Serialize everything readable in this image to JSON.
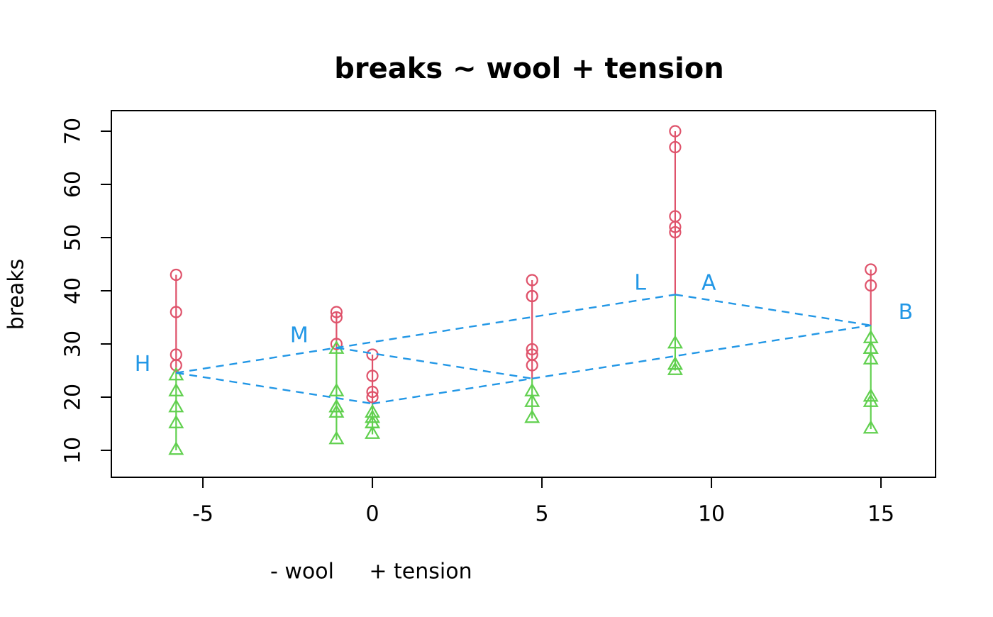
{
  "window": {
    "background": "#ffffff"
  },
  "colors": {
    "above_points": "#DF536B",
    "below_points": "#61D04F",
    "fit_lines": "#2297E6",
    "axis": "#000000"
  },
  "chart_data": {
    "type": "scatter",
    "title": "breaks ~ wool + tension",
    "ylabel": "breaks",
    "xlabel_parts": [
      "- wool",
      "+ tension"
    ],
    "x_ticks": [
      "-5",
      "0",
      "5",
      "10",
      "15"
    ],
    "x_tick_values": [
      -5,
      0,
      5,
      10,
      15
    ],
    "y_ticks": [
      "10",
      "20",
      "30",
      "40",
      "50",
      "60",
      "70"
    ],
    "y_tick_values": [
      10,
      20,
      30,
      40,
      50,
      60,
      70
    ],
    "xlim": [
      -7.7,
      16.61
    ],
    "ylim": [
      4.93,
      73.87
    ],
    "grid": false,
    "marker_meaning": {
      "red_circle": "observation above additive fitted value",
      "green_triangle": "observation below additive fitted value",
      "blue_dashed": "additive fit lines for wool levels and tension links"
    },
    "groups": [
      {
        "wool": "A",
        "tension": "H",
        "x": -5.79,
        "fitted": 24.56,
        "above": [
          43,
          36,
          28,
          26
        ],
        "below": [
          24,
          21,
          18,
          15,
          10
        ]
      },
      {
        "wool": "A",
        "tension": "M",
        "x": -1.06,
        "fitted": 29.28,
        "above": [
          36,
          35,
          30
        ],
        "below": [
          29,
          21,
          18,
          18,
          17,
          12
        ]
      },
      {
        "wool": "B",
        "tension": "H",
        "x": 0.0,
        "fitted": 18.78,
        "above": [
          28,
          24,
          21,
          20
        ],
        "below": [
          17,
          16,
          15,
          15,
          13
        ]
      },
      {
        "wool": "B",
        "tension": "M",
        "x": 4.71,
        "fitted": 23.5,
        "above": [
          42,
          39,
          39,
          29,
          28,
          26
        ],
        "below": [
          21,
          19,
          16
        ]
      },
      {
        "wool": "A",
        "tension": "L",
        "x": 8.93,
        "fitted": 39.28,
        "above": [
          70,
          67,
          54,
          52,
          51
        ],
        "below": [
          30,
          26,
          26,
          25
        ]
      },
      {
        "wool": "B",
        "tension": "L",
        "x": 14.7,
        "fitted": 33.5,
        "above": [
          44,
          41
        ],
        "below": [
          31,
          29,
          29,
          27,
          20,
          19,
          14
        ]
      }
    ],
    "dashed_lines": [
      {
        "name": "wool-A-fit-line",
        "from": [
          -5.79,
          24.56
        ],
        "to": [
          8.93,
          39.28
        ]
      },
      {
        "name": "wool-B-fit-line",
        "from": [
          0.0,
          18.78
        ],
        "to": [
          14.7,
          33.5
        ]
      },
      {
        "name": "tension-H-link",
        "from": [
          -5.79,
          24.56
        ],
        "to": [
          0.0,
          18.78
        ]
      },
      {
        "name": "tension-M-link",
        "from": [
          -1.06,
          29.28
        ],
        "to": [
          4.71,
          23.5
        ]
      },
      {
        "name": "tension-L-link",
        "from": [
          8.93,
          39.28
        ],
        "to": [
          14.7,
          33.5
        ]
      }
    ],
    "level_labels": [
      {
        "text": "H",
        "x": -6.78,
        "y": 26.2
      },
      {
        "text": "M",
        "x": -2.16,
        "y": 31.6
      },
      {
        "text": "L",
        "x": 7.9,
        "y": 41.5
      },
      {
        "text": "A",
        "x": 9.92,
        "y": 41.5
      },
      {
        "text": "B",
        "x": 15.73,
        "y": 35.9
      }
    ]
  }
}
